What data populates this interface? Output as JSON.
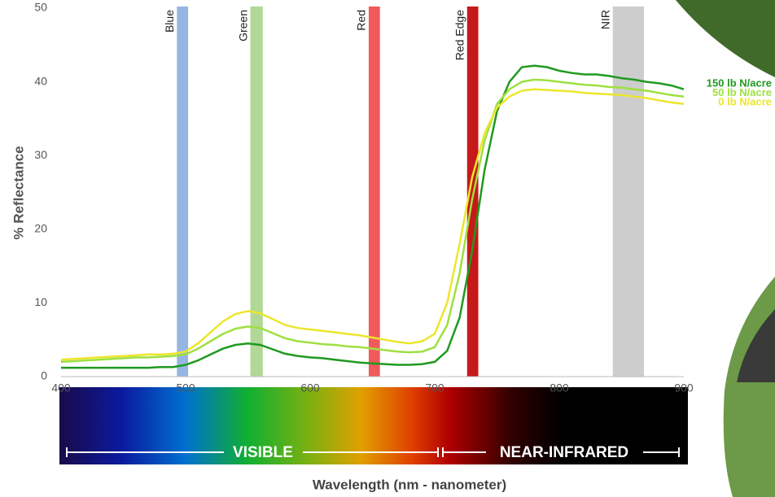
{
  "chart_data": {
    "type": "line",
    "y_label": "% Reflectance",
    "x_label": "Wavelength (nm - nanometer)",
    "xlim": [
      400,
      900
    ],
    "xticks": [
      400,
      500,
      600,
      700,
      800,
      900
    ],
    "ylim": [
      0,
      50
    ],
    "yticks": [
      0,
      10,
      20,
      30,
      40,
      50
    ],
    "x": [
      400,
      410,
      420,
      430,
      440,
      450,
      460,
      470,
      480,
      490,
      500,
      510,
      520,
      530,
      540,
      550,
      560,
      570,
      580,
      590,
      600,
      610,
      620,
      630,
      640,
      650,
      660,
      670,
      680,
      690,
      700,
      710,
      720,
      730,
      740,
      750,
      760,
      770,
      780,
      790,
      800,
      810,
      820,
      830,
      840,
      850,
      860,
      870,
      880,
      890,
      900
    ],
    "series": [
      {
        "name": "150 lb N/acre",
        "color": "#1f9a1f",
        "values": [
          1.2,
          1.2,
          1.2,
          1.2,
          1.2,
          1.2,
          1.2,
          1.2,
          1.3,
          1.3,
          1.6,
          2.2,
          3.0,
          3.8,
          4.3,
          4.5,
          4.3,
          3.7,
          3.1,
          2.8,
          2.6,
          2.5,
          2.3,
          2.1,
          1.9,
          1.8,
          1.7,
          1.6,
          1.6,
          1.7,
          2.0,
          3.5,
          8,
          17,
          28,
          36,
          40,
          42,
          42.2,
          42,
          41.5,
          41.2,
          41,
          41,
          40.8,
          40.5,
          40.3,
          40,
          39.8,
          39.5,
          39
        ]
      },
      {
        "name": "50 lb N/acre",
        "color": "#9ee040",
        "values": [
          2.0,
          2.1,
          2.2,
          2.3,
          2.4,
          2.5,
          2.6,
          2.6,
          2.7,
          2.8,
          3.0,
          3.8,
          4.8,
          5.8,
          6.5,
          6.8,
          6.6,
          5.9,
          5.2,
          4.8,
          4.6,
          4.4,
          4.3,
          4.1,
          4.0,
          3.8,
          3.6,
          3.4,
          3.3,
          3.4,
          4.0,
          7,
          14,
          24,
          32,
          37,
          39,
          40,
          40.3,
          40.2,
          40,
          39.8,
          39.6,
          39.5,
          39.3,
          39.2,
          39,
          38.8,
          38.5,
          38.2,
          38
        ]
      },
      {
        "name": "0 lb N/acre",
        "color": "#ece62c",
        "values": [
          2.3,
          2.4,
          2.5,
          2.6,
          2.7,
          2.8,
          2.9,
          3.0,
          3.0,
          3.1,
          3.4,
          4.5,
          6.0,
          7.5,
          8.5,
          8.9,
          8.6,
          7.8,
          7.0,
          6.6,
          6.4,
          6.2,
          6.0,
          5.8,
          5.6,
          5.3,
          5.0,
          4.7,
          4.5,
          4.8,
          5.8,
          10,
          18,
          27,
          33,
          36.5,
          38,
          38.8,
          39,
          38.9,
          38.8,
          38.7,
          38.5,
          38.4,
          38.3,
          38.2,
          38,
          37.8,
          37.5,
          37.2,
          37
        ]
      }
    ],
    "bands": [
      {
        "label": "Blue",
        "start": 493,
        "end": 502,
        "color": "#8aaee0"
      },
      {
        "label": "Green",
        "start": 552,
        "end": 562,
        "color": "#a8d48c"
      },
      {
        "label": "Red",
        "start": 647,
        "end": 656,
        "color": "#f04848"
      },
      {
        "label": "Red Edge",
        "start": 726,
        "end": 735,
        "color": "#c00000"
      },
      {
        "label": "NIR",
        "start": 843,
        "end": 868,
        "color": "#c8c8c8"
      }
    ],
    "spectrum_labels": [
      "VISIBLE",
      "NEAR-INFRARED"
    ]
  }
}
